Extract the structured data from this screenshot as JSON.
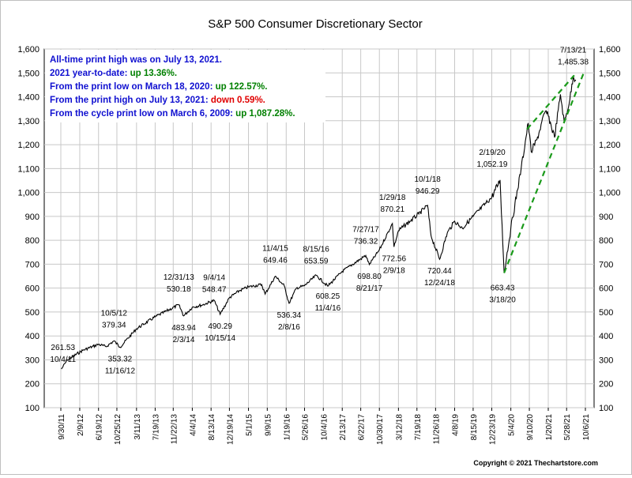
{
  "chart_data": {
    "type": "line",
    "title": "S&P 500 Consumer Discretionary Sector",
    "xlabel": "",
    "ylabel": "",
    "ylim": [
      100,
      1600
    ],
    "y_ticks": [
      "100",
      "200",
      "300",
      "400",
      "500",
      "600",
      "700",
      "800",
      "900",
      "1,000",
      "1,100",
      "1,200",
      "1,300",
      "1,400",
      "1,500",
      "1,600"
    ],
    "x_ticks": [
      "9/30/11",
      "2/9/12",
      "6/19/12",
      "10/25/12",
      "3/11/13",
      "7/19/13",
      "11/22/13",
      "4/4/14",
      "8/13/14",
      "12/19/14",
      "5/1/15",
      "9/9/15",
      "1/19/16",
      "5/26/16",
      "10/4/16",
      "2/13/17",
      "6/22/17",
      "10/30/17",
      "3/12/18",
      "7/19/18",
      "11/26/18",
      "4/8/19",
      "8/15/19",
      "12/23/19",
      "5/4/20",
      "9/10/20",
      "1/20/21",
      "5/28/21",
      "10/6/21"
    ],
    "grid": true,
    "legend": "none",
    "series": [
      {
        "points": [
          [
            "10/4/11",
            261.53
          ],
          [
            "11/15/11",
            300
          ],
          [
            "3/1/12",
            340
          ],
          [
            "6/19/12",
            365
          ],
          [
            "8/10/12",
            355
          ],
          [
            "10/5/12",
            379.34
          ],
          [
            "11/16/12",
            353.32
          ],
          [
            "3/11/13",
            430
          ],
          [
            "7/19/13",
            480
          ],
          [
            "12/31/13",
            530.18
          ],
          [
            "2/3/14",
            483.94
          ],
          [
            "4/4/14",
            520
          ],
          [
            "6/15/14",
            530
          ],
          [
            "9/4/14",
            548.47
          ],
          [
            "10/15/14",
            490.29
          ],
          [
            "12/19/14",
            560
          ],
          [
            "3/1/15",
            590
          ],
          [
            "5/1/15",
            605
          ],
          [
            "8/1/15",
            615
          ],
          [
            "8/25/15",
            575
          ],
          [
            "11/4/15",
            649.46
          ],
          [
            "1/5/16",
            610
          ],
          [
            "2/8/16",
            536.34
          ],
          [
            "3/30/16",
            600
          ],
          [
            "5/26/16",
            610
          ],
          [
            "8/15/16",
            653.59
          ],
          [
            "11/4/16",
            608.25
          ],
          [
            "2/13/17",
            670
          ],
          [
            "7/27/17",
            736.32
          ],
          [
            "8/21/17",
            698.8
          ],
          [
            "10/30/17",
            760
          ],
          [
            "1/29/18",
            870.21
          ],
          [
            "2/9/18",
            772.56
          ],
          [
            "3/12/18",
            840
          ],
          [
            "6/1/18",
            880
          ],
          [
            "8/1/18",
            910
          ],
          [
            "10/1/18",
            946.29
          ],
          [
            "10/25/18",
            820
          ],
          [
            "12/24/18",
            720.44
          ],
          [
            "2/15/19",
            830
          ],
          [
            "4/8/19",
            880
          ],
          [
            "6/1/19",
            850
          ],
          [
            "8/15/19",
            900
          ],
          [
            "12/23/19",
            980
          ],
          [
            "2/19/20",
            1052.19
          ],
          [
            "3/18/20",
            663.43
          ],
          [
            "5/4/20",
            850
          ],
          [
            "7/15/20",
            1100
          ],
          [
            "9/2/20",
            1290
          ],
          [
            "9/23/20",
            1170
          ],
          [
            "11/1/20",
            1220
          ],
          [
            "12/31/20",
            1340
          ],
          [
            "1/20/21",
            1320
          ],
          [
            "3/5/21",
            1230
          ],
          [
            "4/15/21",
            1410
          ],
          [
            "5/12/21",
            1290
          ],
          [
            "6/20/21",
            1390
          ],
          [
            "7/13/21",
            1485.38
          ],
          [
            "8/1/21",
            1470
          ]
        ]
      }
    ],
    "annotations": [
      {
        "date": "10/4/11",
        "value": "261.53"
      },
      {
        "date": "10/5/12",
        "value": "379.34"
      },
      {
        "date": "11/16/12",
        "value": "353.32"
      },
      {
        "date": "12/31/13",
        "value": "530.18"
      },
      {
        "date": "2/3/14",
        "value": "483.94"
      },
      {
        "date": "9/4/14",
        "value": "548.47"
      },
      {
        "date": "10/15/14",
        "value": "490.29"
      },
      {
        "date": "11/4/15",
        "value": "649.46"
      },
      {
        "date": "2/8/16",
        "value": "536.34"
      },
      {
        "date": "8/15/16",
        "value": "653.59"
      },
      {
        "date": "11/4/16",
        "value": "608.25"
      },
      {
        "date": "7/27/17",
        "value": "736.32"
      },
      {
        "date": "8/21/17",
        "value": "698.80"
      },
      {
        "date": "1/29/18",
        "value": "870.21"
      },
      {
        "date": "2/9/18",
        "value": "772.56"
      },
      {
        "date": "10/1/18",
        "value": "946.29"
      },
      {
        "date": "12/24/18",
        "value": "720.44"
      },
      {
        "date": "2/19/20",
        "value": "1,052.19"
      },
      {
        "date": "3/18/20",
        "value": "663.43"
      },
      {
        "date": "7/13/21",
        "value": "1,485.38"
      }
    ],
    "trendlines": [
      {
        "from": [
          "3/18/20",
          663.43
        ],
        "to": [
          "10/1/21",
          1510
        ]
      },
      {
        "from": [
          "8/25/20",
          1265
        ],
        "to": [
          "7/20/21",
          1490
        ]
      }
    ],
    "notes": [
      {
        "text": "All-time print high was on July 13, 2021.",
        "highlight": "",
        "highlight_color": ""
      },
      {
        "text": "2021 year-to-date:  ",
        "highlight": "up 13.36%.",
        "highlight_color": "#008000"
      },
      {
        "text": "From the print low on March 18, 2020:  ",
        "highlight": "up 122.57%.",
        "highlight_color": "#008000"
      },
      {
        "text": "From the print high on July 13, 2021:  ",
        "highlight": "down 0.59%.",
        "highlight_color": "#e00000"
      },
      {
        "text": "From the cycle print low on March 6, 2009:  ",
        "highlight": "up 1,087.28%.",
        "highlight_color": "#008000"
      }
    ],
    "copyright": "Copyright © 2021 Thechartstore.com",
    "colors": {
      "line": "#000000",
      "trendline": "#1a9a1a",
      "note_text": "#1010d0",
      "grid": "#c8c8c8"
    }
  }
}
